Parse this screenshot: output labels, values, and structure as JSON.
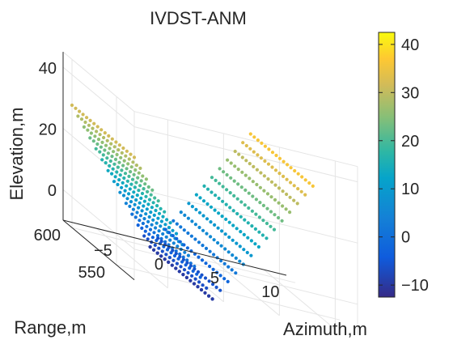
{
  "chart_data": {
    "type": "scatter3d",
    "title": "IVDST-ANM",
    "xlabel": "Azimuth,m",
    "ylabel": "Range,m",
    "zlabel": "Elevation,m",
    "x_ticks": [
      -5,
      0,
      5,
      10
    ],
    "y_ticks": [
      550,
      600
    ],
    "z_ticks": [
      0,
      20,
      40
    ],
    "xlim": [
      -8,
      12
    ],
    "ylim": [
      530,
      610
    ],
    "zlim": [
      -10,
      45
    ],
    "grid": true,
    "colormap": "parula",
    "colorbar": {
      "ticks": [
        -10,
        0,
        10,
        20,
        30,
        40
      ],
      "range": [
        -12.5,
        42.5
      ]
    },
    "surfaces": [
      {
        "name_visible": false,
        "x_range": [
          -8,
          -1
        ],
        "y_range": [
          530,
          600
        ],
        "z_start": 30,
        "z_end": -10,
        "rows": 18,
        "cols": 14
      },
      {
        "name_visible": false,
        "x_range": [
          -1,
          8
        ],
        "y_range": [
          530,
          600
        ],
        "z_start": -10,
        "z_end": 35,
        "rows": 18,
        "cols": 14
      }
    ]
  },
  "colors": {
    "parula_low": "#352a87",
    "parula_mid": "#13beb8",
    "parula_high": "#f9fb0e",
    "axis": "#262626",
    "grid": "#e5e5e5"
  }
}
